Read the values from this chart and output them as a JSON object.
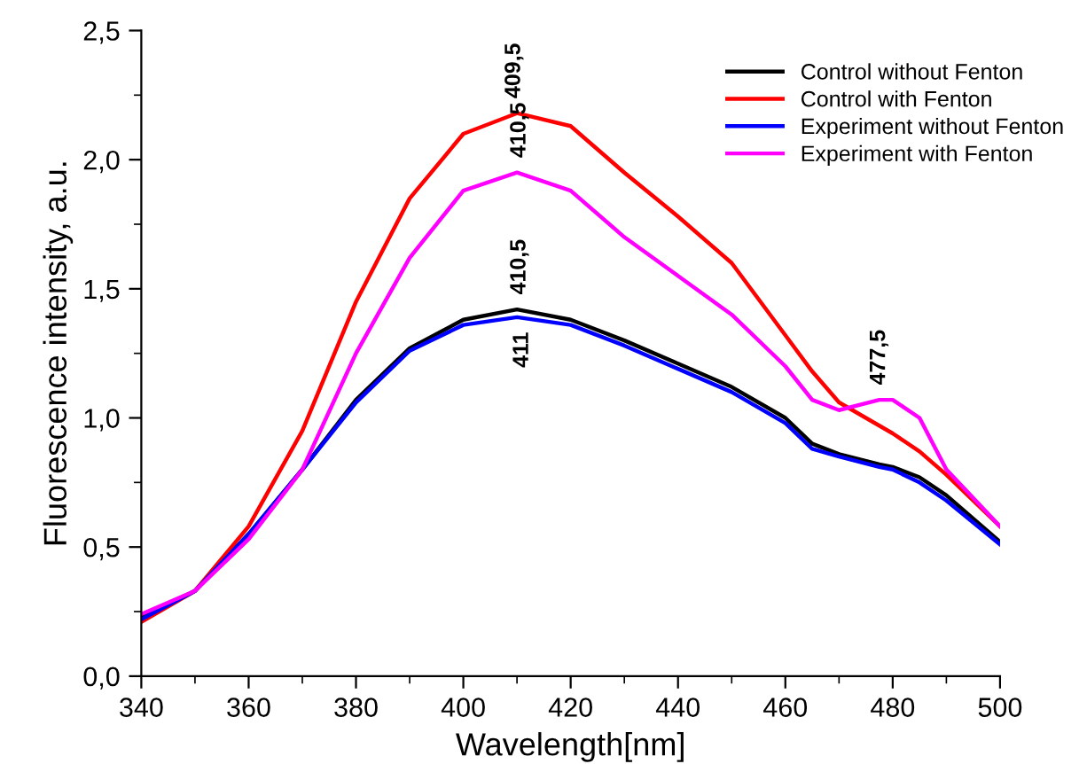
{
  "chart_data": {
    "type": "line",
    "xlabel": "Wavelength[nm]",
    "ylabel": "Fluorescence intensity, a.u.",
    "x": [
      340,
      350,
      360,
      370,
      380,
      390,
      400,
      410,
      420,
      430,
      440,
      450,
      460,
      465,
      470,
      477.5,
      480,
      485,
      490,
      500
    ],
    "series": [
      {
        "name": "Control without Fenton",
        "color": "#000000",
        "values": [
          0.23,
          0.33,
          0.55,
          0.8,
          1.07,
          1.27,
          1.38,
          1.42,
          1.38,
          1.3,
          1.21,
          1.12,
          1.0,
          0.9,
          0.86,
          0.82,
          0.81,
          0.77,
          0.7,
          0.52
        ]
      },
      {
        "name": "Control with Fenton",
        "color": "#ff0000",
        "values": [
          0.21,
          0.33,
          0.58,
          0.95,
          1.45,
          1.85,
          2.1,
          2.18,
          2.13,
          1.95,
          1.78,
          1.6,
          1.32,
          1.18,
          1.06,
          0.97,
          0.94,
          0.87,
          0.78,
          0.58
        ]
      },
      {
        "name": "Experiment without Fenton",
        "color": "#0000ff",
        "values": [
          0.22,
          0.33,
          0.55,
          0.8,
          1.06,
          1.26,
          1.36,
          1.39,
          1.36,
          1.28,
          1.19,
          1.1,
          0.98,
          0.88,
          0.85,
          0.81,
          0.8,
          0.75,
          0.68,
          0.51
        ]
      },
      {
        "name": "Experiment with Fenton",
        "color": "#ff00ff",
        "values": [
          0.24,
          0.33,
          0.53,
          0.8,
          1.25,
          1.62,
          1.88,
          1.95,
          1.88,
          1.7,
          1.55,
          1.4,
          1.2,
          1.07,
          1.03,
          1.07,
          1.07,
          1.0,
          0.8,
          0.58
        ]
      }
    ],
    "xlim": [
      340,
      500
    ],
    "xticks": [
      340,
      360,
      380,
      400,
      420,
      440,
      460,
      480,
      500
    ],
    "ylim": [
      0,
      2.5
    ],
    "yticks": [
      {
        "value": 0,
        "label": "0,0"
      },
      {
        "value": 0.5,
        "label": "0,5"
      },
      {
        "value": 1,
        "label": "1,0"
      },
      {
        "value": 1.5,
        "label": "1,5"
      },
      {
        "value": 2,
        "label": "2,0"
      },
      {
        "value": 2.5,
        "label": "2,5"
      }
    ],
    "annotations": [
      {
        "text": "409,5",
        "x": 409.5,
        "y": 2.18
      },
      {
        "text": "410,5",
        "x": 410.5,
        "y": 1.95
      },
      {
        "text": "410,5",
        "x": 410.5,
        "y": 1.42
      },
      {
        "text": "411",
        "x": 411,
        "y": 1.39
      },
      {
        "text": "477,5",
        "x": 477.5,
        "y": 1.07
      }
    ],
    "legend": "top right",
    "grid": false,
    "line_style": "solid",
    "marker": "none"
  }
}
